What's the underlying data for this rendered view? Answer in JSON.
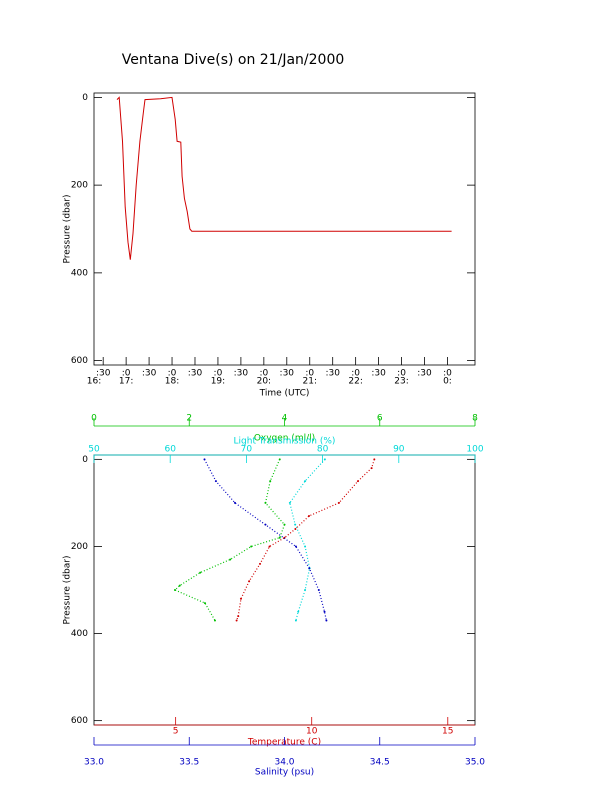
{
  "chart_data": [
    {
      "type": "line",
      "title": "Ventana Dive(s) on 21/Jan/2000",
      "x_label": "Time (UTC)",
      "y_label": "Pressure (dbar)",
      "xlim": [
        16.3,
        24.6
      ],
      "ylim": [
        -10,
        610
      ],
      "yticks": [
        0,
        200,
        400,
        600
      ],
      "xticks": [
        {
          "value": 16.5,
          "label": ":30"
        },
        {
          "value": 17,
          "label": ":0"
        },
        {
          "value": 17.5,
          "label": ":30"
        },
        {
          "value": 18,
          "label": ":0"
        },
        {
          "value": 18.5,
          "label": ":30"
        },
        {
          "value": 19,
          "label": ":0"
        },
        {
          "value": 19.5,
          "label": ":30"
        },
        {
          "value": 20,
          "label": ":0"
        },
        {
          "value": 20.5,
          "label": ":30"
        },
        {
          "value": 21,
          "label": ":0"
        },
        {
          "value": 21.5,
          "label": ":30"
        },
        {
          "value": 22,
          "label": ":0"
        },
        {
          "value": 22.5,
          "label": ":30"
        },
        {
          "value": 23,
          "label": ":0"
        },
        {
          "value": 23.5,
          "label": ":30"
        },
        {
          "value": 24,
          "label": ":0"
        }
      ],
      "x_hour_labels": [
        {
          "value": 16.3,
          "label": "16:"
        },
        {
          "value": 17,
          "label": "17:"
        },
        {
          "value": 18,
          "label": "18:"
        },
        {
          "value": 19,
          "label": "19:"
        },
        {
          "value": 20,
          "label": "20:"
        },
        {
          "value": 21,
          "label": "21:"
        },
        {
          "value": 22,
          "label": "22:"
        },
        {
          "value": 23,
          "label": "23:"
        },
        {
          "value": 24,
          "label": "0:"
        }
      ],
      "series": [
        {
          "color": "#d00000",
          "x": [
            16.8,
            16.85,
            16.92,
            16.98,
            17.04,
            17.09,
            17.15,
            17.22,
            17.3,
            17.38,
            17.41,
            17.75,
            18.0,
            18.07,
            18.11,
            18.19,
            18.22,
            18.27,
            18.33,
            18.39,
            18.43,
            24.09
          ],
          "values": [
            5,
            0,
            100,
            250,
            330,
            370,
            310,
            200,
            100,
            30,
            5,
            3,
            0,
            50,
            100,
            102,
            180,
            230,
            260,
            300,
            305,
            305
          ]
        }
      ]
    },
    {
      "type": "profile",
      "y_label": "Pressure (dbar)",
      "ylim": [
        -10,
        610
      ],
      "yticks": [
        0,
        200,
        400,
        600
      ],
      "axes": [
        {
          "label": "Oxygen (ml/l)",
          "color": "#00c000",
          "side": "top-outer",
          "xlim": [
            0,
            8
          ],
          "xticks": [
            0,
            2,
            4,
            6,
            8
          ]
        },
        {
          "label": "Light Transmission (%)",
          "color": "#00d8d8",
          "side": "top",
          "xlim": [
            50,
            100
          ],
          "xticks": [
            50,
            60,
            70,
            80,
            90,
            100
          ]
        },
        {
          "label": "Temperature (C)",
          "color": "#d00000",
          "side": "bottom",
          "xlim": [
            2,
            16
          ],
          "xticks": [
            5,
            10,
            15
          ]
        },
        {
          "label": "Salinity (psu)",
          "color": "#0000c0",
          "side": "bottom-outer",
          "xlim": [
            33,
            35
          ],
          "xticks": [
            {
              "value": 33,
              "label": "33.0"
            },
            33.5,
            {
              "value": 34,
              "label": "34.0"
            },
            34.5,
            {
              "value": 35,
              "label": "35.0"
            }
          ]
        }
      ],
      "series": [
        {
          "axis": 0,
          "color": "#00c000",
          "x": [
            3.9,
            3.7,
            3.6,
            4.0,
            3.9,
            3.3,
            2.86,
            2.23,
            1.8,
            1.7,
            2.33,
            2.54
          ],
          "values": [
            0,
            50,
            100,
            150,
            180,
            200,
            230,
            260,
            290,
            300,
            330,
            370
          ]
        },
        {
          "axis": 1,
          "color": "#00d8d8",
          "x": [
            80.3,
            77.7,
            75.7,
            76.4,
            77.7,
            78.3,
            77.7,
            76.8,
            76.5
          ],
          "values": [
            0,
            50,
            100,
            150,
            200,
            250,
            300,
            350,
            370
          ]
        },
        {
          "axis": 2,
          "color": "#d00000",
          "x": [
            12.3,
            12.2,
            11.7,
            11.0,
            9.9,
            9.4,
            9.0,
            8.45,
            8.1,
            7.7,
            7.4,
            7.3,
            7.24
          ],
          "values": [
            0,
            20,
            50,
            100,
            130,
            160,
            180,
            200,
            240,
            280,
            320,
            360,
            370
          ]
        },
        {
          "axis": 3,
          "color": "#0000c0",
          "x": [
            33.58,
            33.64,
            33.74,
            33.9,
            34.06,
            34.13,
            34.18,
            34.21,
            34.22
          ],
          "values": [
            0,
            50,
            100,
            150,
            200,
            250,
            300,
            350,
            370
          ]
        }
      ]
    }
  ]
}
